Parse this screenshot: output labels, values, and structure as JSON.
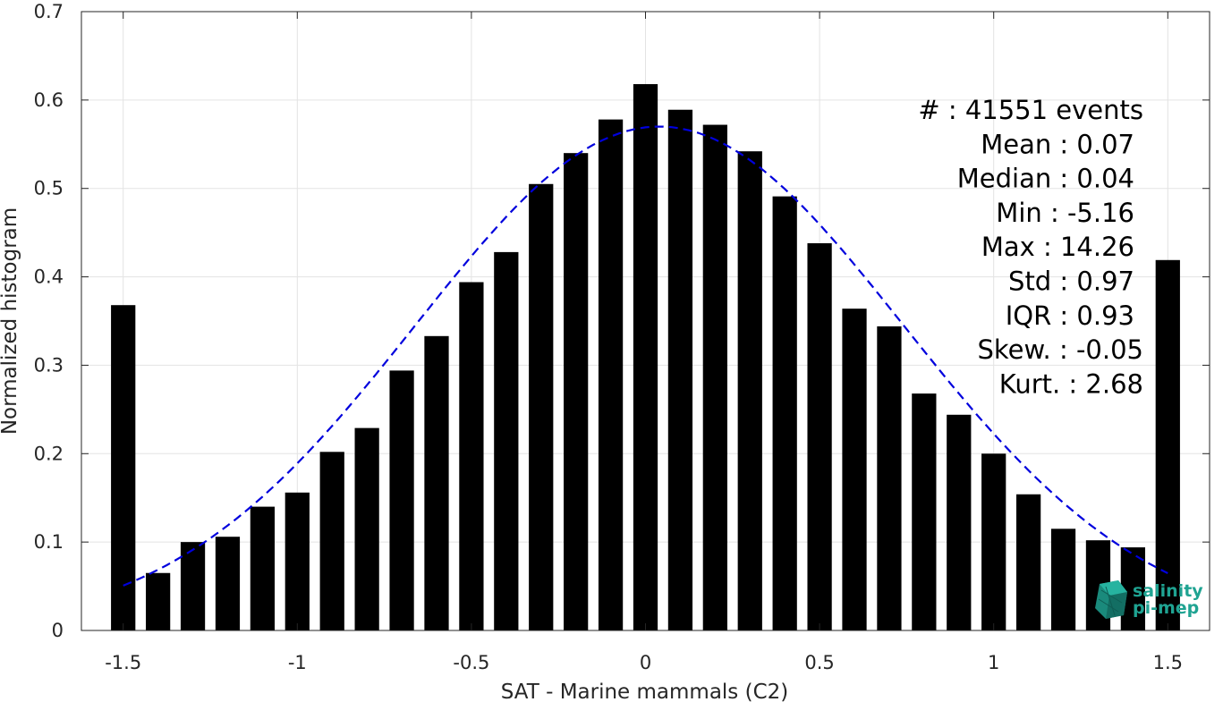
{
  "chart_data": {
    "type": "bar",
    "xlabel": "SAT - Marine mammals (C2)",
    "ylabel": "Normalized histogram",
    "xlim": [
      -1.62,
      1.62
    ],
    "ylim": [
      0,
      0.7
    ],
    "xticks": [
      -1.5,
      -1,
      -0.5,
      0,
      0.5,
      1,
      1.5
    ],
    "xtick_labels": [
      "-1.5",
      "-1",
      "-0.5",
      "0",
      "0.5",
      "1",
      "1.5"
    ],
    "yticks": [
      0,
      0.1,
      0.2,
      0.3,
      0.4,
      0.5,
      0.6,
      0.7
    ],
    "ytick_labels": [
      "0",
      "0.1",
      "0.2",
      "0.3",
      "0.4",
      "0.5",
      "0.6",
      "0.7"
    ],
    "grid": true,
    "bar_width": 0.07,
    "x": [
      -1.5,
      -1.4,
      -1.3,
      -1.2,
      -1.1,
      -1.0,
      -0.9,
      -0.8,
      -0.7,
      -0.6,
      -0.5,
      -0.4,
      -0.3,
      -0.2,
      -0.1,
      0.0,
      0.1,
      0.2,
      0.3,
      0.4,
      0.5,
      0.6,
      0.7,
      0.8,
      0.9,
      1.0,
      1.1,
      1.2,
      1.3,
      1.4,
      1.5
    ],
    "values": [
      0.368,
      0.065,
      0.1,
      0.106,
      0.14,
      0.156,
      0.202,
      0.229,
      0.294,
      0.333,
      0.394,
      0.428,
      0.505,
      0.54,
      0.578,
      0.618,
      0.589,
      0.572,
      0.542,
      0.491,
      0.438,
      0.364,
      0.344,
      0.268,
      0.244,
      0.2,
      0.154,
      0.115,
      0.102,
      0.094,
      0.419
    ],
    "bar_color": "#000000",
    "fit": {
      "type": "gaussian",
      "mean": 0.04,
      "sigma": 0.7,
      "peak": 0.57,
      "x_range": [
        -1.5,
        1.5
      ],
      "color": "#0000dd",
      "style": "dashed"
    },
    "stats": [
      "#  : 41551 events",
      "Mean : 0.07",
      "Median : 0.04",
      "Min : -5.16",
      "Max : 14.26",
      "Std : 0.97",
      "IQR : 0.93",
      "Skew. : -0.05",
      "Kurt. : 2.68"
    ],
    "stats_placement": "top-right"
  },
  "logo": {
    "line1": "salinity",
    "line2": "pi-mep",
    "color": "#1fa392"
  }
}
